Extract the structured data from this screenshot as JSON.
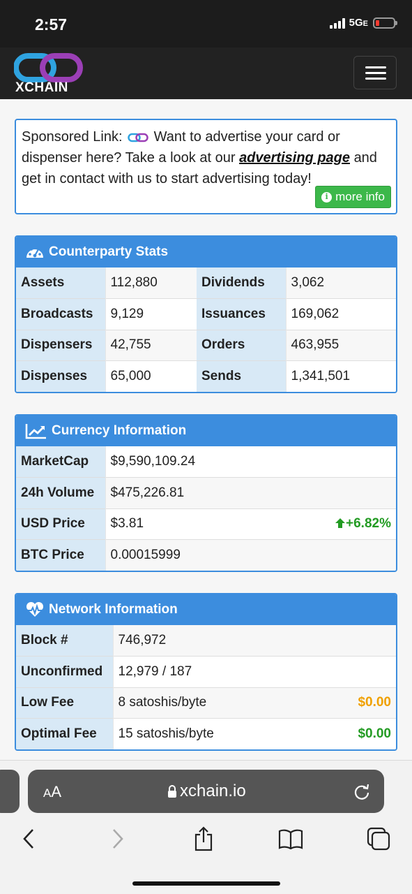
{
  "status": {
    "time": "2:57",
    "network": "5G",
    "network_sub": "E"
  },
  "brand": {
    "name": "XCHAIN"
  },
  "sponsor": {
    "prefix": "Sponsored Link:",
    "text1": "Want to advertise your card or dispenser here? Take a look at our",
    "link": "advertising page",
    "text2": "and get in contact with us to start advertising today!",
    "button": "more info"
  },
  "stats": {
    "title": "Counterparty Stats",
    "rows": [
      {
        "l1": "Assets",
        "v1": "112,880",
        "l2": "Dividends",
        "v2": "3,062"
      },
      {
        "l1": "Broadcasts",
        "v1": "9,129",
        "l2": "Issuances",
        "v2": "169,062"
      },
      {
        "l1": "Dispensers",
        "v1": "42,755",
        "l2": "Orders",
        "v2": "463,955"
      },
      {
        "l1": "Dispenses",
        "v1": "65,000",
        "l2": "Sends",
        "v2": "1,341,501"
      }
    ]
  },
  "currency": {
    "title": "Currency Information",
    "marketcap_label": "MarketCap",
    "marketcap": "$9,590,109.24",
    "volume_label": "24h Volume",
    "volume": "$475,226.81",
    "usd_label": "USD Price",
    "usd": "$3.81",
    "usd_change": "+6.82%",
    "btc_label": "BTC Price",
    "btc": "0.00015999"
  },
  "network": {
    "title": "Network Information",
    "block_label": "Block #",
    "block": "746,972",
    "unconfirmed_label": "Unconfirmed",
    "unconfirmed": "12,979 / 187",
    "lowfee_label": "Low Fee",
    "lowfee": "8 satoshis/byte",
    "lowfee_usd": "$0.00",
    "optfee_label": "Optimal Fee",
    "optfee": "15 satoshis/byte",
    "optfee_usd": "$0.00"
  },
  "browser": {
    "aa_big": "A",
    "aa_small": "A",
    "url": "xchain.io"
  },
  "colors": {
    "accent": "#3c8dde",
    "positive": "#239b23",
    "fee_warn": "#f0a000",
    "label_bg": "#d8e9f6"
  }
}
